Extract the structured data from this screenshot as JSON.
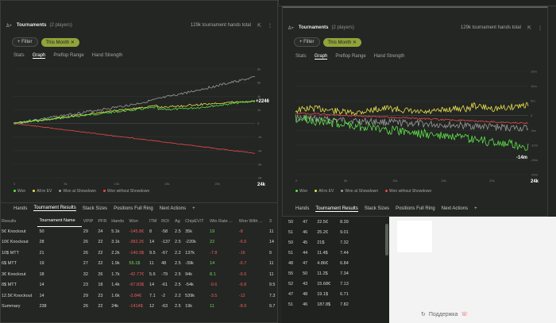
{
  "left": {
    "title": "Tournaments",
    "players": "(2 players)",
    "hands_total": "129k tournament hands total",
    "filter_label": "+ Filter",
    "chip_label": "This Month",
    "tabs": [
      "Stats",
      "Graph",
      "Preflop Range",
      "Hand Strength"
    ],
    "active_tab": "Graph",
    "last_value_label": "+2246",
    "x_last": "24k",
    "y_ticks": [
      "8k",
      "6k",
      "4k",
      "2k",
      "0",
      "-2k",
      "-4k",
      "-6k",
      "-8k"
    ],
    "x_ticks": [
      "0",
      "5k",
      "10k",
      "15k",
      "20k"
    ],
    "legend": [
      "Won",
      "All-in EV",
      "Won at Showdown",
      "Won without Showdown"
    ],
    "bottom_tabs": [
      "Hands",
      "Tournament Results",
      "Stack Sizes",
      "Positions Full Ring",
      "Next Actions",
      "+"
    ],
    "active_bottom_tab": "Tournament Results"
  },
  "right": {
    "title": "Tournaments",
    "players": "(2 players)",
    "hands_total": "129k tournament hands total",
    "filter_label": "+ Filter",
    "chip_label": "This Month",
    "tabs": [
      "Stats",
      "Graph",
      "Preflop Range",
      "Hand Strength"
    ],
    "active_tab": "Graph",
    "last_value_label": "-14m",
    "x_last": "24k",
    "y_ticks": [
      "15m",
      "10m",
      "5m",
      "0",
      "-5m",
      "-10m",
      "-15m",
      "-20m"
    ],
    "x_ticks": [
      "0",
      "5k",
      "10k",
      "15k",
      "20k"
    ],
    "legend": [
      "Won",
      "All-in EV",
      "Won at Showdown",
      "Won without Showdown"
    ],
    "bottom_tabs": [
      "Hands",
      "Tournament Results",
      "Stack Sizes",
      "Positions Full Ring",
      "Next Actions",
      "+"
    ],
    "active_bottom_tab": "Tournament Results"
  },
  "results": {
    "headers": [
      "Results",
      "Tournament Name",
      "VPIP",
      "PFR",
      "Hands",
      "Won",
      "ITM",
      "ROI",
      "Ag",
      "ChipEV/T",
      "Win Rate ...",
      "Won With ...",
      "3"
    ],
    "rows": [
      [
        "5€ Knockout",
        "50",
        "29",
        "24",
        "5.1k",
        "-145.8€",
        "8",
        "-58",
        "2.5",
        "35k",
        "19",
        "-8",
        "11"
      ],
      [
        "10€ Knockout",
        "28",
        "26",
        "22",
        "3.1k",
        "-382.2€",
        "14",
        "-137",
        "2.5",
        "-220k",
        "22",
        "-6.5",
        "14"
      ],
      [
        "10$ MTT",
        "21",
        "26",
        "22",
        "2.2k",
        "-140.9$",
        "9.5",
        "-67",
        "2.2",
        "137k",
        "-7.8",
        "-16",
        "9"
      ],
      [
        "6$ MTT",
        "19",
        "27",
        "22",
        "1.9k",
        "55.1$",
        "11",
        "48",
        "2.5",
        "-39k",
        "14",
        "-6.7",
        "11"
      ],
      [
        "3€ Knockout",
        "18",
        "32",
        "26",
        "1.7k",
        "-42.77€",
        "5.6",
        "-79",
        "2.5",
        "94k",
        "8.1",
        "-6.6",
        "11"
      ],
      [
        "8$ MTT",
        "14",
        "23",
        "18",
        "1.4k",
        "-67.83$",
        "14",
        "-61",
        "2.5",
        "-54k",
        "-0.6",
        "-6.8",
        "9.5"
      ],
      [
        "12.5€ Knockout",
        "14",
        "29",
        "23",
        "1.6k",
        "-3.84€",
        "7.1",
        "-2",
        "2.2",
        "539k",
        "-3.5",
        "-12",
        "7.3"
      ],
      [
        "Summary",
        "238",
        "26",
        "22",
        "24k",
        "-1414$",
        "12",
        "-63",
        "2.5",
        "19k",
        "11",
        "-8.9",
        "9.7"
      ]
    ]
  },
  "side": {
    "rows": [
      [
        "50",
        "47",
        "22.5€",
        "8.39"
      ],
      [
        "51",
        "46",
        "25.2€",
        "9.01"
      ],
      [
        "50",
        "45",
        "21$",
        "7.32"
      ],
      [
        "51",
        "44",
        "11.4$",
        "7.44"
      ],
      [
        "48",
        "47",
        "4.86€",
        "6.84"
      ],
      [
        "55",
        "50",
        "11.2$",
        "7.34"
      ],
      [
        "52",
        "43",
        "15.68€",
        "7.13"
      ],
      [
        "47",
        "48",
        "19.1$",
        "6.71"
      ],
      [
        "51",
        "46",
        "187.8$",
        "7.82"
      ]
    ]
  },
  "support_label": "Поддержка",
  "colors": {
    "won": "#5fe04a",
    "allin": "#e8e04a",
    "showdown": "#9a9a9a",
    "noshowdown": "#e84a4a",
    "accent": "#8fa43a"
  }
}
